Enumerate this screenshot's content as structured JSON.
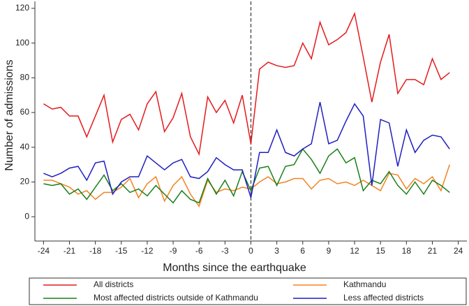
{
  "chart_data": {
    "type": "line",
    "xlabel": "Months since the earthquake",
    "ylabel": "Number of admissions",
    "x": [
      -24,
      -23,
      -22,
      -21,
      -20,
      -19,
      -18,
      -17,
      -16,
      -15,
      -14,
      -13,
      -12,
      -11,
      -10,
      -9,
      -8,
      -7,
      -6,
      -5,
      -4,
      -3,
      -2,
      -1,
      0,
      1,
      2,
      3,
      4,
      5,
      6,
      7,
      8,
      9,
      10,
      11,
      12,
      13,
      14,
      15,
      16,
      17,
      18,
      19,
      20,
      21,
      22,
      23
    ],
    "series": [
      {
        "name": "All districts",
        "color": "#e41a1c",
        "values": [
          65,
          62,
          63,
          58,
          58,
          46,
          58,
          70,
          43,
          56,
          59,
          50,
          65,
          72,
          49,
          57,
          71,
          46,
          36,
          69,
          60,
          67,
          54,
          70,
          42,
          85,
          89,
          87,
          86,
          87,
          100,
          91,
          112,
          99,
          102,
          106,
          117,
          92,
          66,
          89,
          105,
          71,
          79,
          79,
          76,
          91,
          79,
          83
        ]
      },
      {
        "name": "Kathmandu",
        "color": "#f58220",
        "values": [
          21,
          21,
          19,
          17,
          13,
          15,
          10,
          14,
          14,
          17,
          22,
          11,
          19,
          23,
          9,
          18,
          23,
          13,
          6,
          21,
          14,
          16,
          15,
          17,
          16,
          20,
          23,
          19,
          20,
          22,
          22,
          16,
          21,
          22,
          19,
          20,
          18,
          21,
          18,
          15,
          25,
          24,
          16,
          22,
          19,
          23,
          15,
          30
        ]
      },
      {
        "name": "Most affected districts outside of Kathmandu",
        "color": "#1a7f1a",
        "values": [
          19,
          18,
          19,
          13,
          16,
          10,
          17,
          24,
          15,
          19,
          14,
          16,
          12,
          18,
          13,
          8,
          15,
          10,
          8,
          22,
          13,
          21,
          12,
          26,
          15,
          28,
          29,
          18,
          29,
          30,
          39,
          33,
          25,
          35,
          39,
          31,
          34,
          15,
          21,
          19,
          26,
          18,
          13,
          20,
          13,
          21,
          18,
          14
        ]
      },
      {
        "name": "Less affected districts",
        "color": "#1f1fc0",
        "values": [
          25,
          23,
          25,
          28,
          29,
          21,
          31,
          32,
          13,
          20,
          23,
          23,
          35,
          31,
          27,
          31,
          33,
          23,
          22,
          26,
          34,
          30,
          27,
          27,
          11,
          37,
          37,
          50,
          37,
          35,
          39,
          42,
          66,
          42,
          44,
          55,
          65,
          58,
          18,
          56,
          54,
          29,
          50,
          37,
          44,
          47,
          46,
          39
        ]
      }
    ],
    "xlim": [
      -25,
      25
    ],
    "xticks": [
      -24,
      -21,
      -18,
      -15,
      -12,
      -9,
      -6,
      -3,
      0,
      3,
      6,
      9,
      12,
      15,
      18,
      21,
      24
    ],
    "ylim": [
      -14,
      124
    ],
    "yticks": [
      0,
      20,
      40,
      60,
      80,
      100,
      120
    ],
    "vline": 0,
    "legend": "bottom"
  }
}
